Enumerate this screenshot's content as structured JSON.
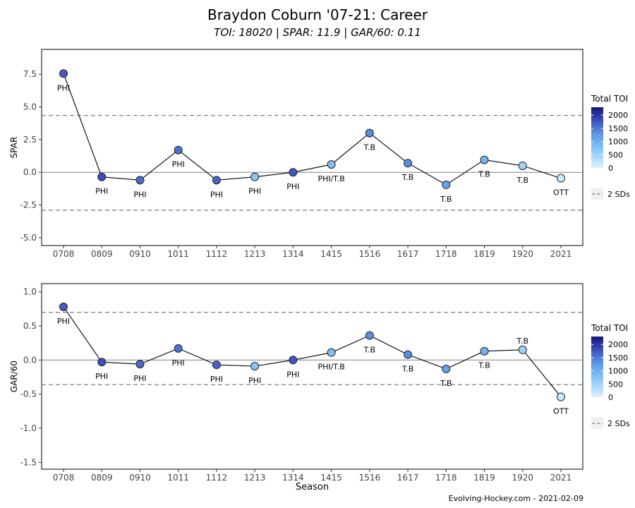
{
  "header": {
    "title": "Braydon Coburn '07-21: Career",
    "subtitle": "TOI: 18020 | SPAR: 11.9 | GAR/60: 0.11"
  },
  "caption": "Evolving-Hockey.com - 2021-02-09",
  "colors": {
    "toi_scale": [
      "#e0f2ff",
      "#86c8f8",
      "#5c9ae6",
      "#3e4fc0",
      "#14147a"
    ],
    "sd_line": "#808080",
    "zero_line": "#808080",
    "line": "#000000"
  },
  "chart_data": [
    {
      "type": "line",
      "xlabel": "",
      "ylabel": "SPAR",
      "ylim": [
        -5.6,
        9.4
      ],
      "y_ticks": [
        "-5.0",
        "-2.5",
        "0.0",
        "2.5",
        "5.0",
        "7.5"
      ],
      "y_tick_values": [
        -5.0,
        -2.5,
        0.0,
        2.5,
        5.0,
        7.5
      ],
      "categories": [
        "0708",
        "0809",
        "0910",
        "1011",
        "1112",
        "1213",
        "1314",
        "1415",
        "1516",
        "1617",
        "1718",
        "1819",
        "1920",
        "2021"
      ],
      "values": [
        7.55,
        -0.35,
        -0.6,
        1.7,
        -0.6,
        -0.35,
        0.0,
        0.6,
        3.0,
        0.7,
        -0.95,
        0.95,
        0.5,
        -0.45
      ],
      "teams": [
        "PHI",
        "PHI",
        "PHI",
        "PHI",
        "PHI",
        "PHI",
        "PHI",
        "PHI/T.B",
        "T.B",
        "T.B",
        "T.B",
        "T.B",
        "T.B",
        "OTT"
      ],
      "label_above": [
        false,
        false,
        false,
        false,
        false,
        false,
        false,
        false,
        false,
        false,
        false,
        false,
        false,
        false
      ],
      "toi": [
        1700,
        1800,
        1600,
        1550,
        1650,
        700,
        1750,
        800,
        1350,
        1350,
        1150,
        950,
        500,
        150
      ],
      "sd_lines": [
        4.35,
        -2.9
      ],
      "zero_line": 0,
      "legend": {
        "title": "Total TOI",
        "ticks": [
          "2000",
          "1500",
          "1000",
          "500",
          "0"
        ],
        "tick_values": [
          2000,
          1500,
          1000,
          500,
          0
        ],
        "range": [
          0,
          2300
        ],
        "sd_label": "2 SDs"
      }
    },
    {
      "type": "line",
      "xlabel": "Season",
      "ylabel": "GAR/60",
      "ylim": [
        -1.6,
        1.12
      ],
      "y_ticks": [
        "-1.5",
        "-1.0",
        "-0.5",
        "0.0",
        "0.5",
        "1.0"
      ],
      "y_tick_values": [
        -1.5,
        -1.0,
        -0.5,
        0.0,
        0.5,
        1.0
      ],
      "categories": [
        "0708",
        "0809",
        "0910",
        "1011",
        "1112",
        "1213",
        "1314",
        "1415",
        "1516",
        "1617",
        "1718",
        "1819",
        "1920",
        "2021"
      ],
      "values": [
        0.78,
        -0.03,
        -0.06,
        0.17,
        -0.07,
        -0.09,
        0.0,
        0.11,
        0.36,
        0.08,
        -0.13,
        0.13,
        0.15,
        -0.54
      ],
      "teams": [
        "PHI",
        "PHI",
        "PHI",
        "PHI",
        "PHI",
        "PHI",
        "PHI",
        "PHI/T.B",
        "T.B",
        "T.B",
        "T.B",
        "T.B",
        "T.B",
        "OTT"
      ],
      "label_above": [
        false,
        false,
        false,
        false,
        false,
        false,
        false,
        false,
        false,
        false,
        false,
        false,
        true,
        false
      ],
      "toi": [
        1700,
        1800,
        1600,
        1550,
        1650,
        700,
        1750,
        800,
        1350,
        1350,
        1150,
        950,
        500,
        150
      ],
      "sd_lines": [
        0.7,
        -0.36
      ],
      "zero_line": 0,
      "legend": {
        "title": "Total TOI",
        "ticks": [
          "2000",
          "1500",
          "1000",
          "500",
          "0"
        ],
        "tick_values": [
          2000,
          1500,
          1000,
          500,
          0
        ],
        "range": [
          0,
          2300
        ],
        "sd_label": "2 SDs"
      }
    }
  ]
}
